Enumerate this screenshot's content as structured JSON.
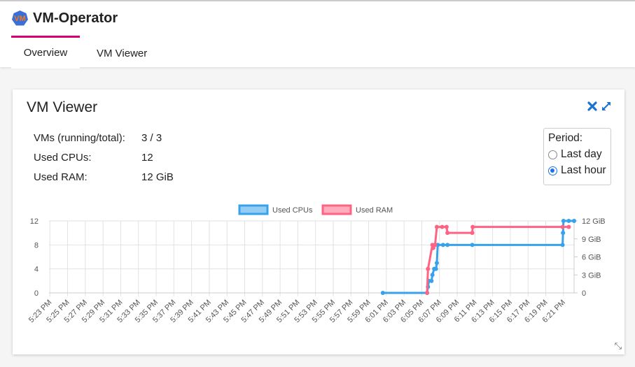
{
  "app": {
    "title": "VM-Operator",
    "logo_text": "VM"
  },
  "tabs": [
    {
      "label": "Overview",
      "active": true
    },
    {
      "label": "VM Viewer",
      "active": false
    }
  ],
  "accent": "#d6006e",
  "card": {
    "title": "VM Viewer",
    "icons": [
      "close-icon",
      "expand-icon"
    ],
    "stats": [
      {
        "label": "VMs (running/total):",
        "value": "3 / 3"
      },
      {
        "label": "Used CPUs:",
        "value": "12"
      },
      {
        "label": "Used RAM:",
        "value": "12 GiB"
      }
    ],
    "period": {
      "label": "Period:",
      "options": [
        {
          "label": "Last day",
          "selected": false
        },
        {
          "label": "Last hour",
          "selected": true
        }
      ]
    }
  },
  "chart_data": {
    "type": "line",
    "legend": [
      "Used CPUs",
      "Used RAM"
    ],
    "legend_placement": "top",
    "grid": true,
    "x_ticks": [
      "5:23 PM",
      "5:25 PM",
      "5:27 PM",
      "5:29 PM",
      "5:31 PM",
      "5:33 PM",
      "5:35 PM",
      "5:37 PM",
      "5:39 PM",
      "5:41 PM",
      "5:43 PM",
      "5:45 PM",
      "5:47 PM",
      "5:49 PM",
      "5:51 PM",
      "5:53 PM",
      "5:55 PM",
      "5:57 PM",
      "5:59 PM",
      "6:01 PM",
      "6:03 PM",
      "6:05 PM",
      "6:07 PM",
      "6:09 PM",
      "6:11 PM",
      "6:13 PM",
      "6:15 PM",
      "6:17 PM",
      "6:19 PM",
      "6:21 PM"
    ],
    "xlim": [
      "5:22:54 PM",
      "6:22:12 PM"
    ],
    "y_left": {
      "ticks": [
        "0",
        "4",
        "8",
        "12"
      ],
      "range": [
        0,
        12
      ]
    },
    "y_right": {
      "ticks": [
        "0",
        "3 GiB",
        "6 GiB",
        "9 GiB",
        "12 GiB"
      ],
      "range": [
        0,
        12
      ]
    },
    "series": [
      {
        "name": "Used CPUs",
        "color": "#36a2eb",
        "axis": "left",
        "points": [
          [
            "6:00:36",
            0
          ],
          [
            "6:05:36",
            0
          ],
          [
            "6:05:42",
            1
          ],
          [
            "6:05:48",
            2
          ],
          [
            "6:06:06",
            2
          ],
          [
            "6:06:12",
            3
          ],
          [
            "6:06:24",
            4
          ],
          [
            "6:06:30",
            4
          ],
          [
            "6:06:36",
            4
          ],
          [
            "6:06:42",
            5
          ],
          [
            "6:06:48",
            8
          ],
          [
            "6:07:24",
            8
          ],
          [
            "6:07:54",
            8
          ],
          [
            "6:10:42",
            8
          ],
          [
            "6:20:54",
            8
          ],
          [
            "6:20:57",
            10
          ],
          [
            "6:21:00",
            12
          ],
          [
            "6:21:36",
            12
          ],
          [
            "6:22:12",
            12
          ]
        ]
      },
      {
        "name": "Used RAM",
        "color": "#ff6384",
        "axis": "right",
        "points": [
          [
            "6:05:36",
            0
          ],
          [
            "6:05:42",
            4
          ],
          [
            "6:06:12",
            8
          ],
          [
            "6:06:18",
            7.5
          ],
          [
            "6:06:30",
            8
          ],
          [
            "6:06:42",
            11
          ],
          [
            "6:07:18",
            11
          ],
          [
            "6:07:48",
            11
          ],
          [
            "6:07:54",
            10
          ],
          [
            "6:10:42",
            10
          ],
          [
            "6:10:45",
            11
          ],
          [
            "6:20:54",
            11
          ],
          [
            "6:21:36",
            11
          ]
        ]
      }
    ]
  }
}
